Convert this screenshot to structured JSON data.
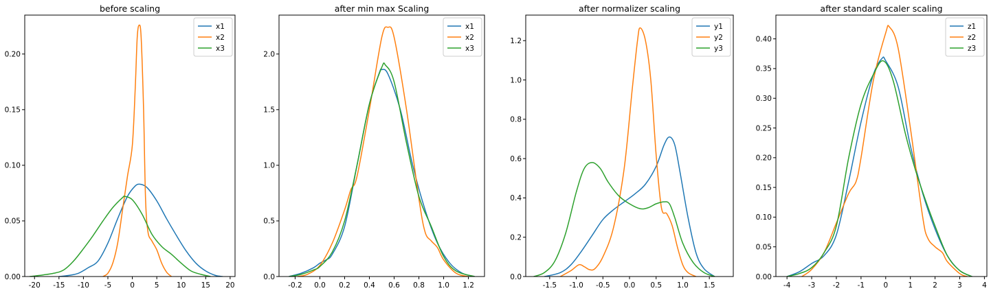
{
  "chart_data": [
    {
      "type": "line",
      "title": "before scaling",
      "xlim": [
        -22,
        21
      ],
      "ylim": [
        0,
        0.235
      ],
      "xticks": [
        "-20",
        "-15",
        "-10",
        "-5",
        "0",
        "5",
        "10",
        "15",
        "20"
      ],
      "xtick_values": [
        -20,
        -15,
        -10,
        -5,
        0,
        5,
        10,
        15,
        20
      ],
      "yticks": [
        "0.00",
        "0.05",
        "0.10",
        "0.15",
        "0.20"
      ],
      "ytick_values": [
        0,
        0.05,
        0.1,
        0.15,
        0.2
      ],
      "legend": "top-right",
      "grid": false,
      "series": [
        {
          "name": "x1",
          "color": "#1f77b4",
          "points": [
            [
              -15,
              0
            ],
            [
              -13,
              0.001
            ],
            [
              -11,
              0.003
            ],
            [
              -9,
              0.008
            ],
            [
              -7,
              0.014
            ],
            [
              -5,
              0.03
            ],
            [
              -3,
              0.052
            ],
            [
              -1,
              0.072
            ],
            [
              0.5,
              0.081
            ],
            [
              1.5,
              0.083
            ],
            [
              3,
              0.08
            ],
            [
              5,
              0.068
            ],
            [
              7,
              0.052
            ],
            [
              9,
              0.037
            ],
            [
              11,
              0.023
            ],
            [
              13,
              0.012
            ],
            [
              15,
              0.005
            ],
            [
              17,
              0.001
            ],
            [
              18.5,
              0
            ]
          ]
        },
        {
          "name": "x2",
          "color": "#ff7f0e",
          "points": [
            [
              -6,
              0
            ],
            [
              -5,
              0.003
            ],
            [
              -4,
              0.012
            ],
            [
              -3,
              0.03
            ],
            [
              -2,
              0.06
            ],
            [
              -1,
              0.09
            ],
            [
              0,
              0.118
            ],
            [
              0.6,
              0.17
            ],
            [
              1,
              0.215
            ],
            [
              1.4,
              0.226
            ],
            [
              1.8,
              0.215
            ],
            [
              2.3,
              0.15
            ],
            [
              2.7,
              0.07
            ],
            [
              3.2,
              0.04
            ],
            [
              4,
              0.032
            ],
            [
              5,
              0.024
            ],
            [
              6,
              0.012
            ],
            [
              7,
              0.004
            ],
            [
              8,
              0
            ]
          ]
        },
        {
          "name": "x3",
          "color": "#2ca02c",
          "points": [
            [
              -21,
              0
            ],
            [
              -19,
              0.001
            ],
            [
              -16,
              0.003
            ],
            [
              -14,
              0.006
            ],
            [
              -12,
              0.014
            ],
            [
              -10,
              0.025
            ],
            [
              -8,
              0.037
            ],
            [
              -6,
              0.05
            ],
            [
              -4,
              0.062
            ],
            [
              -2,
              0.071
            ],
            [
              -1.5,
              0.072
            ],
            [
              0,
              0.069
            ],
            [
              2,
              0.056
            ],
            [
              4,
              0.038
            ],
            [
              6,
              0.027
            ],
            [
              8,
              0.02
            ],
            [
              10,
              0.012
            ],
            [
              12,
              0.005
            ],
            [
              14,
              0.002
            ],
            [
              16,
              0
            ]
          ]
        }
      ]
    },
    {
      "type": "line",
      "title": "after min max Scaling",
      "xlim": [
        -0.33,
        1.33
      ],
      "ylim": [
        0,
        2.35
      ],
      "xticks": [
        "-0.2",
        "0.0",
        "0.2",
        "0.4",
        "0.6",
        "0.8",
        "1.0",
        "1.2"
      ],
      "xtick_values": [
        -0.2,
        0,
        0.2,
        0.4,
        0.6,
        0.8,
        1.0,
        1.2
      ],
      "yticks": [
        "0.0",
        "0.5",
        "1.0",
        "1.5",
        "2.0"
      ],
      "ytick_values": [
        0,
        0.5,
        1.0,
        1.5,
        2.0
      ],
      "legend": "top-right",
      "grid": false,
      "series": [
        {
          "name": "x1",
          "color": "#1f77b4",
          "points": [
            [
              -0.25,
              0
            ],
            [
              -0.15,
              0.03
            ],
            [
              -0.05,
              0.08
            ],
            [
              0,
              0.12
            ],
            [
              0.05,
              0.15
            ],
            [
              0.1,
              0.2
            ],
            [
              0.2,
              0.45
            ],
            [
              0.3,
              1.0
            ],
            [
              0.4,
              1.55
            ],
            [
              0.48,
              1.83
            ],
            [
              0.5,
              1.86
            ],
            [
              0.55,
              1.82
            ],
            [
              0.65,
              1.5
            ],
            [
              0.75,
              1.0
            ],
            [
              0.85,
              0.6
            ],
            [
              0.95,
              0.3
            ],
            [
              1.05,
              0.12
            ],
            [
              1.15,
              0.03
            ],
            [
              1.25,
              0
            ]
          ]
        },
        {
          "name": "x2",
          "color": "#ff7f0e",
          "points": [
            [
              -0.18,
              0
            ],
            [
              -0.1,
              0.02
            ],
            [
              0,
              0.1
            ],
            [
              0.1,
              0.3
            ],
            [
              0.2,
              0.6
            ],
            [
              0.25,
              0.78
            ],
            [
              0.3,
              0.9
            ],
            [
              0.4,
              1.5
            ],
            [
              0.5,
              2.15
            ],
            [
              0.55,
              2.24
            ],
            [
              0.6,
              2.15
            ],
            [
              0.7,
              1.5
            ],
            [
              0.8,
              0.7
            ],
            [
              0.85,
              0.4
            ],
            [
              0.9,
              0.32
            ],
            [
              0.95,
              0.26
            ],
            [
              1.0,
              0.15
            ],
            [
              1.1,
              0.03
            ],
            [
              1.2,
              0
            ]
          ]
        },
        {
          "name": "x3",
          "color": "#2ca02c",
          "points": [
            [
              -0.25,
              0
            ],
            [
              -0.15,
              0.02
            ],
            [
              -0.05,
              0.06
            ],
            [
              0,
              0.09
            ],
            [
              0.1,
              0.22
            ],
            [
              0.2,
              0.5
            ],
            [
              0.3,
              1.0
            ],
            [
              0.4,
              1.55
            ],
            [
              0.5,
              1.88
            ],
            [
              0.53,
              1.9
            ],
            [
              0.6,
              1.75
            ],
            [
              0.7,
              1.2
            ],
            [
              0.8,
              0.72
            ],
            [
              0.9,
              0.45
            ],
            [
              1.0,
              0.18
            ],
            [
              1.1,
              0.05
            ],
            [
              1.25,
              0
            ]
          ]
        }
      ]
    },
    {
      "type": "line",
      "title": "after normalizer scaling",
      "xlim": [
        -1.95,
        1.95
      ],
      "ylim": [
        0,
        1.33
      ],
      "xticks": [
        "-1.5",
        "-1.0",
        "-0.5",
        "0.0",
        "0.5",
        "1.0",
        "1.5"
      ],
      "xtick_values": [
        -1.5,
        -1.0,
        -0.5,
        0,
        0.5,
        1.0,
        1.5
      ],
      "yticks": [
        "0.0",
        "0.2",
        "0.4",
        "0.6",
        "0.8",
        "1.0",
        "1.2"
      ],
      "ytick_values": [
        0,
        0.2,
        0.4,
        0.6,
        0.8,
        1.0,
        1.2
      ],
      "legend": "top-right",
      "grid": false,
      "series": [
        {
          "name": "y1",
          "color": "#1f77b4",
          "points": [
            [
              -1.6,
              0
            ],
            [
              -1.3,
              0.02
            ],
            [
              -1.1,
              0.06
            ],
            [
              -0.9,
              0.13
            ],
            [
              -0.7,
              0.21
            ],
            [
              -0.5,
              0.29
            ],
            [
              -0.3,
              0.34
            ],
            [
              -0.1,
              0.38
            ],
            [
              0.1,
              0.42
            ],
            [
              0.3,
              0.47
            ],
            [
              0.5,
              0.56
            ],
            [
              0.65,
              0.67
            ],
            [
              0.75,
              0.71
            ],
            [
              0.85,
              0.67
            ],
            [
              0.95,
              0.53
            ],
            [
              1.1,
              0.3
            ],
            [
              1.25,
              0.12
            ],
            [
              1.4,
              0.04
            ],
            [
              1.6,
              0
            ]
          ]
        },
        {
          "name": "y2",
          "color": "#ff7f0e",
          "points": [
            [
              -1.3,
              0
            ],
            [
              -1.1,
              0.03
            ],
            [
              -0.95,
              0.06
            ],
            [
              -0.85,
              0.05
            ],
            [
              -0.75,
              0.035
            ],
            [
              -0.65,
              0.04
            ],
            [
              -0.5,
              0.1
            ],
            [
              -0.3,
              0.25
            ],
            [
              -0.1,
              0.55
            ],
            [
              0.05,
              0.95
            ],
            [
              0.15,
              1.2
            ],
            [
              0.2,
              1.265
            ],
            [
              0.3,
              1.2
            ],
            [
              0.4,
              1.0
            ],
            [
              0.5,
              0.62
            ],
            [
              0.6,
              0.35
            ],
            [
              0.7,
              0.32
            ],
            [
              0.8,
              0.26
            ],
            [
              0.9,
              0.15
            ],
            [
              1.0,
              0.06
            ],
            [
              1.1,
              0.02
            ],
            [
              1.25,
              0
            ]
          ]
        },
        {
          "name": "y3",
          "color": "#2ca02c",
          "points": [
            [
              -1.8,
              0
            ],
            [
              -1.6,
              0.02
            ],
            [
              -1.4,
              0.08
            ],
            [
              -1.2,
              0.22
            ],
            [
              -1.0,
              0.43
            ],
            [
              -0.85,
              0.55
            ],
            [
              -0.7,
              0.58
            ],
            [
              -0.55,
              0.55
            ],
            [
              -0.4,
              0.48
            ],
            [
              -0.2,
              0.41
            ],
            [
              0,
              0.37
            ],
            [
              0.2,
              0.345
            ],
            [
              0.35,
              0.35
            ],
            [
              0.5,
              0.37
            ],
            [
              0.65,
              0.38
            ],
            [
              0.75,
              0.37
            ],
            [
              0.85,
              0.3
            ],
            [
              1.0,
              0.17
            ],
            [
              1.2,
              0.07
            ],
            [
              1.4,
              0.02
            ],
            [
              1.6,
              0
            ]
          ]
        }
      ]
    },
    {
      "type": "line",
      "title": "after standard scaler scaling",
      "xlim": [
        -4.45,
        4.1
      ],
      "ylim": [
        0,
        0.44
      ],
      "xticks": [
        "-4",
        "-3",
        "-2",
        "-1",
        "0",
        "1",
        "2",
        "3",
        "4"
      ],
      "xtick_values": [
        -4,
        -3,
        -2,
        -1,
        0,
        1,
        2,
        3,
        4
      ],
      "yticks": [
        "0.00",
        "0.05",
        "0.10",
        "0.15",
        "0.20",
        "0.25",
        "0.30",
        "0.35",
        "0.40"
      ],
      "ytick_values": [
        0,
        0.05,
        0.1,
        0.15,
        0.2,
        0.25,
        0.3,
        0.35,
        0.4
      ],
      "legend": "top-right",
      "grid": false,
      "series": [
        {
          "name": "z1",
          "color": "#1f77b4",
          "points": [
            [
              -4,
              0
            ],
            [
              -3.5,
              0.008
            ],
            [
              -3,
              0.022
            ],
            [
              -2.5,
              0.035
            ],
            [
              -2,
              0.07
            ],
            [
              -1.5,
              0.16
            ],
            [
              -1,
              0.26
            ],
            [
              -0.5,
              0.34
            ],
            [
              -0.15,
              0.367
            ],
            [
              0,
              0.363
            ],
            [
              0.5,
              0.32
            ],
            [
              1,
              0.22
            ],
            [
              1.5,
              0.14
            ],
            [
              2,
              0.08
            ],
            [
              2.5,
              0.035
            ],
            [
              3,
              0.01
            ],
            [
              3.5,
              0
            ]
          ]
        },
        {
          "name": "z2",
          "color": "#ff7f0e",
          "points": [
            [
              -3.4,
              0
            ],
            [
              -3,
              0.012
            ],
            [
              -2.5,
              0.04
            ],
            [
              -2,
              0.09
            ],
            [
              -1.5,
              0.14
            ],
            [
              -1.2,
              0.16
            ],
            [
              -1,
              0.2
            ],
            [
              -0.5,
              0.33
            ],
            [
              0,
              0.41
            ],
            [
              0.15,
              0.42
            ],
            [
              0.5,
              0.385
            ],
            [
              1,
              0.25
            ],
            [
              1.5,
              0.1
            ],
            [
              1.7,
              0.065
            ],
            [
              2,
              0.05
            ],
            [
              2.3,
              0.04
            ],
            [
              2.5,
              0.025
            ],
            [
              3,
              0.005
            ],
            [
              3.3,
              0
            ]
          ]
        },
        {
          "name": "z3",
          "color": "#2ca02c",
          "points": [
            [
              -4,
              0
            ],
            [
              -3.5,
              0.005
            ],
            [
              -3,
              0.015
            ],
            [
              -2.5,
              0.04
            ],
            [
              -2,
              0.085
            ],
            [
              -1.5,
              0.2
            ],
            [
              -1,
              0.29
            ],
            [
              -0.5,
              0.34
            ],
            [
              -0.1,
              0.363
            ],
            [
              0.3,
              0.33
            ],
            [
              0.8,
              0.24
            ],
            [
              1.2,
              0.18
            ],
            [
              1.6,
              0.13
            ],
            [
              2,
              0.085
            ],
            [
              2.5,
              0.035
            ],
            [
              3,
              0.01
            ],
            [
              3.5,
              0
            ]
          ]
        }
      ]
    }
  ]
}
